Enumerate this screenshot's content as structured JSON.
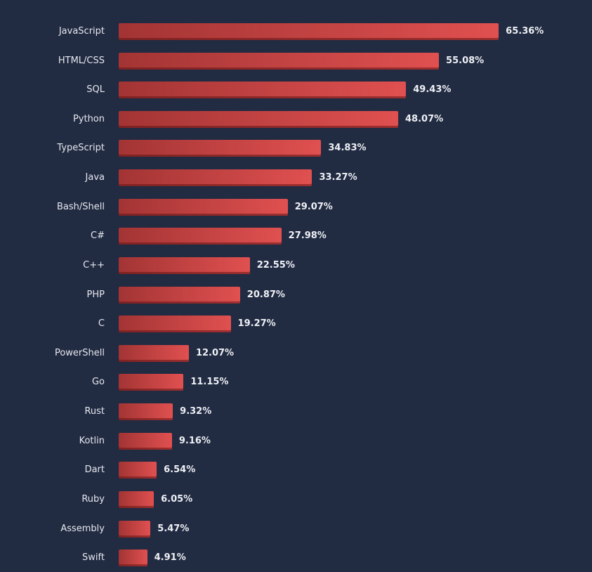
{
  "chart_data": {
    "type": "bar",
    "orientation": "horizontal",
    "title": "",
    "xlabel": "",
    "ylabel": "",
    "xlim": [
      0,
      100
    ],
    "grid": false,
    "colors": {
      "bar_start": "#a33434",
      "bar_end": "#e05050",
      "background": "#212b42"
    },
    "categories": [
      "JavaScript",
      "HTML/CSS",
      "SQL",
      "Python",
      "TypeScript",
      "Java",
      "Bash/Shell",
      "C#",
      "C++",
      "PHP",
      "C",
      "PowerShell",
      "Go",
      "Rust",
      "Kotlin",
      "Dart",
      "Ruby",
      "Assembly",
      "Swift"
    ],
    "values": [
      65.36,
      55.08,
      49.43,
      48.07,
      34.83,
      33.27,
      29.07,
      27.98,
      22.55,
      20.87,
      19.27,
      12.07,
      11.15,
      9.32,
      9.16,
      6.54,
      6.05,
      5.47,
      4.91
    ],
    "value_labels": [
      "65.36%",
      "55.08%",
      "49.43%",
      "48.07%",
      "34.83%",
      "33.27%",
      "29.07%",
      "27.98%",
      "22.55%",
      "20.87%",
      "19.27%",
      "12.07%",
      "11.15%",
      "9.32%",
      "9.16%",
      "6.54%",
      "6.05%",
      "5.47%",
      "4.91%"
    ]
  }
}
